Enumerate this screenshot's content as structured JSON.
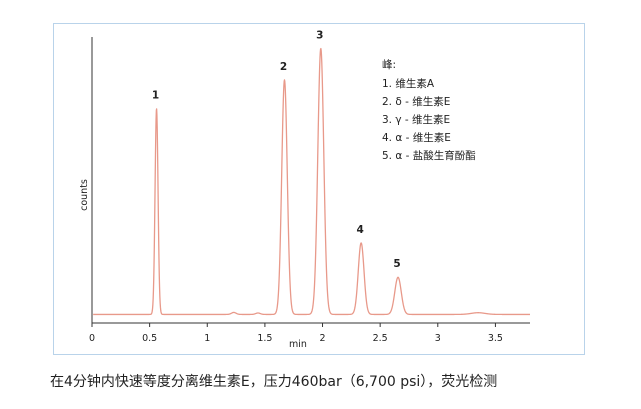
{
  "chart_data": {
    "type": "line",
    "xlabel": "min",
    "ylabel": "counts",
    "xlim": [
      0,
      3.8
    ],
    "ylim": [
      0,
      100
    ],
    "x_ticks": [
      {
        "value": 0,
        "label": "0"
      },
      {
        "value": 0.5,
        "label": "0.5"
      },
      {
        "value": 1,
        "label": "1"
      },
      {
        "value": 1.5,
        "label": "1.5"
      },
      {
        "value": 2,
        "label": "2"
      },
      {
        "value": 2.5,
        "label": "2.5"
      },
      {
        "value": 3,
        "label": "3"
      },
      {
        "value": 3.5,
        "label": "3.5"
      }
    ],
    "grid": false,
    "baseline": 3,
    "peaks": [
      {
        "label": "1",
        "x": 0.56,
        "height": 72,
        "width": 0.013
      },
      {
        "label": "2",
        "x": 1.67,
        "height": 82,
        "width": 0.024
      },
      {
        "label": "3",
        "x": 1.985,
        "height": 93,
        "width": 0.026
      },
      {
        "label": "4",
        "x": 2.335,
        "height": 25,
        "width": 0.025
      },
      {
        "label": "5",
        "x": 2.655,
        "height": 13,
        "width": 0.028
      }
    ],
    "minor_bumps": [
      {
        "x": 1.23,
        "height": 0.7,
        "width": 0.02
      },
      {
        "x": 1.44,
        "height": 0.5,
        "width": 0.02
      },
      {
        "x": 3.35,
        "height": 0.6,
        "width": 0.06
      }
    ],
    "line_color": "#e8998a",
    "axis_color": "#333333",
    "legend": {
      "title": "峰:",
      "placement": "top-right",
      "items": [
        "1. 维生素A",
        "2. δ - 维生素E",
        "3. γ - 维生素E",
        "4. α - 维生素E",
        "5. α - 盐酸生育酚酯"
      ]
    }
  },
  "caption": "在4分钟内快速等度分离维生素E，压力460bar（6,700 psi），荧光检测",
  "frame_color": "#b9d3ea"
}
